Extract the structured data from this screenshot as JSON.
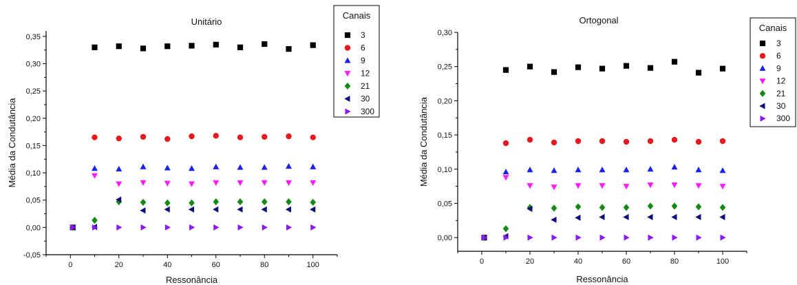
{
  "chart_data": [
    {
      "type": "scatter",
      "title": "Unitário",
      "xlabel": "Ressonância",
      "ylabel": "Média da Condutância",
      "xlim": [
        -10,
        110
      ],
      "ylim": [
        -0.05,
        0.36
      ],
      "x_ticks": [
        0,
        20,
        40,
        60,
        80,
        100
      ],
      "x_tick_labels": [
        "0",
        "20",
        "40",
        "60",
        "80",
        "100"
      ],
      "y_ticks": [
        -0.05,
        0.0,
        0.05,
        0.1,
        0.15,
        0.2,
        0.25,
        0.3,
        0.35
      ],
      "y_tick_labels": [
        "-0,05",
        "0,00",
        "0,05",
        "0,10",
        "0,15",
        "0,20",
        "0,25",
        "0,30",
        "0,35"
      ],
      "grid": false,
      "legend": {
        "title": "Canais",
        "placement": "top-right"
      },
      "x": [
        1,
        10,
        20,
        30,
        40,
        50,
        60,
        70,
        80,
        90,
        100
      ],
      "series": [
        {
          "name": "3",
          "marker": "square",
          "color": "#000000",
          "values": [
            0.0,
            0.33,
            0.332,
            0.328,
            0.332,
            0.333,
            0.335,
            0.33,
            0.336,
            0.327,
            0.334
          ]
        },
        {
          "name": "6",
          "marker": "circle",
          "color": "#e8191e",
          "values": [
            0.0,
            0.165,
            0.163,
            0.166,
            0.162,
            0.167,
            0.168,
            0.165,
            0.166,
            0.167,
            0.165
          ]
        },
        {
          "name": "9",
          "marker": "triangle-up",
          "color": "#1a22f0",
          "values": [
            0.0,
            0.108,
            0.107,
            0.111,
            0.109,
            0.108,
            0.111,
            0.11,
            0.11,
            0.112,
            0.111
          ]
        },
        {
          "name": "12",
          "marker": "triangle-down",
          "color": "#ff1aff",
          "values": [
            0.0,
            0.095,
            0.08,
            0.082,
            0.081,
            0.08,
            0.082,
            0.082,
            0.082,
            0.082,
            0.082
          ]
        },
        {
          "name": "21",
          "marker": "diamond",
          "color": "#138a13",
          "values": [
            0.0,
            0.013,
            0.047,
            0.046,
            0.045,
            0.045,
            0.047,
            0.047,
            0.047,
            0.047,
            0.046
          ]
        },
        {
          "name": "30",
          "marker": "triangle-left",
          "color": "#0f0f7a",
          "values": [
            0.0,
            0.001,
            0.051,
            0.031,
            0.033,
            0.033,
            0.033,
            0.033,
            0.033,
            0.033,
            0.033
          ]
        },
        {
          "name": "300",
          "marker": "triangle-right",
          "color": "#8a1af0",
          "values": [
            0.0,
            0.0,
            0.0,
            0.0,
            0.0,
            0.0,
            0.0,
            0.0,
            0.0,
            0.0,
            0.0
          ]
        }
      ]
    },
    {
      "type": "scatter",
      "title": "Ortogonal",
      "xlabel": "Ressonância",
      "ylabel": "Média da Condutância",
      "xlim": [
        -10,
        110
      ],
      "ylim": [
        -0.02,
        0.3
      ],
      "x_ticks": [
        0,
        20,
        40,
        60,
        80,
        100
      ],
      "x_tick_labels": [
        "0",
        "20",
        "40",
        "60",
        "80",
        "100"
      ],
      "y_ticks": [
        0.0,
        0.05,
        0.1,
        0.15,
        0.2,
        0.25,
        0.3
      ],
      "y_tick_labels": [
        "0,00",
        "0,05",
        "0,10",
        "0,15",
        "0,20",
        "0,25",
        "0,30"
      ],
      "grid": false,
      "legend": {
        "title": "Canais",
        "placement": "top-right"
      },
      "x": [
        1,
        10,
        20,
        30,
        40,
        50,
        60,
        70,
        80,
        90,
        100
      ],
      "series": [
        {
          "name": "3",
          "marker": "square",
          "color": "#000000",
          "values": [
            0.0,
            0.245,
            0.25,
            0.242,
            0.249,
            0.247,
            0.251,
            0.248,
            0.257,
            0.241,
            0.247
          ]
        },
        {
          "name": "6",
          "marker": "circle",
          "color": "#e8191e",
          "values": [
            0.0,
            0.138,
            0.143,
            0.139,
            0.141,
            0.141,
            0.14,
            0.141,
            0.143,
            0.14,
            0.141
          ]
        },
        {
          "name": "9",
          "marker": "triangle-up",
          "color": "#1a22f0",
          "values": [
            0.0,
            0.096,
            0.099,
            0.098,
            0.099,
            0.099,
            0.099,
            0.1,
            0.103,
            0.099,
            0.098
          ]
        },
        {
          "name": "12",
          "marker": "triangle-down",
          "color": "#ff1aff",
          "values": [
            0.0,
            0.088,
            0.076,
            0.074,
            0.076,
            0.076,
            0.075,
            0.077,
            0.077,
            0.076,
            0.075
          ]
        },
        {
          "name": "21",
          "marker": "diamond",
          "color": "#138a13",
          "values": [
            0.0,
            0.013,
            0.044,
            0.043,
            0.045,
            0.044,
            0.044,
            0.046,
            0.046,
            0.045,
            0.044
          ]
        },
        {
          "name": "30",
          "marker": "triangle-left",
          "color": "#0f0f7a",
          "values": [
            0.0,
            0.002,
            0.042,
            0.026,
            0.029,
            0.03,
            0.03,
            0.03,
            0.03,
            0.03,
            0.03
          ]
        },
        {
          "name": "300",
          "marker": "triangle-right",
          "color": "#8a1af0",
          "values": [
            0.0,
            0.0,
            0.0,
            0.0,
            0.0,
            0.0,
            0.0,
            0.0,
            0.0,
            0.0,
            0.0
          ]
        }
      ]
    }
  ]
}
